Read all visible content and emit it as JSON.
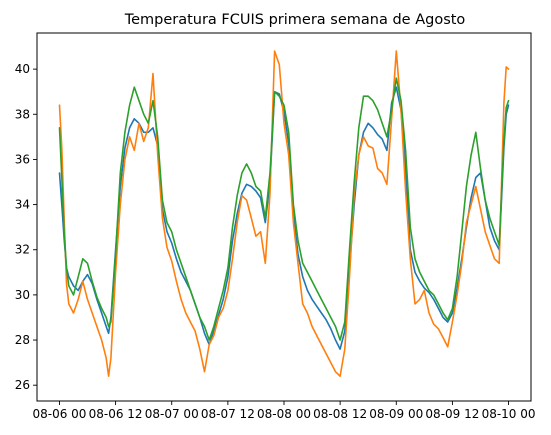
{
  "chart_data": {
    "type": "line",
    "title": "Temperatura FCUIS primera semana de Agosto",
    "xlabel": "",
    "ylabel": "",
    "x_ticks": [
      "08-06 00",
      "08-06 12",
      "08-07 00",
      "08-07 12",
      "08-08 00",
      "08-08 12",
      "08-09 00",
      "08-09 12",
      "08-10 00"
    ],
    "y_ticks": [
      26,
      28,
      30,
      32,
      34,
      36,
      38,
      40
    ],
    "xlim_hours": [
      -4.8,
      100.8
    ],
    "ylim": [
      25.3,
      41.6
    ],
    "grid": false,
    "legend": "none",
    "series": [
      {
        "color": "#1f77b4",
        "x_hours": [
          0,
          0.5,
          1,
          1.5,
          2,
          3,
          4,
          5,
          6,
          7,
          8,
          9,
          10,
          10.5,
          11,
          12,
          13,
          14,
          15,
          16,
          17,
          18,
          19,
          20,
          21,
          22,
          23,
          24,
          25,
          26,
          27,
          28,
          29,
          30,
          31,
          32,
          33,
          34,
          35,
          36,
          37,
          38,
          39,
          40,
          41,
          42,
          43,
          44,
          45,
          46,
          47,
          48,
          49,
          50,
          51,
          52,
          53,
          54,
          55,
          56,
          57,
          58,
          59,
          60,
          61,
          62,
          63,
          64,
          65,
          66,
          67,
          68,
          69,
          70,
          71,
          72,
          73,
          74,
          75,
          76,
          77,
          78,
          79,
          80,
          81,
          82,
          83,
          84,
          85,
          86,
          87,
          88,
          89,
          90,
          91,
          92,
          93,
          94,
          95,
          95.5,
          96
        ],
        "values": [
          35.4,
          34,
          32.5,
          31.2,
          30.8,
          30.4,
          30.2,
          30.6,
          30.9,
          30.5,
          29.8,
          29.2,
          28.6,
          28.3,
          29,
          32,
          34.8,
          36.5,
          37.4,
          37.8,
          37.6,
          37.2,
          37.2,
          37.4,
          36.6,
          33.8,
          32.8,
          32.3,
          31.6,
          31,
          30.6,
          30.2,
          29.6,
          29,
          28.3,
          27.8,
          28.4,
          29.1,
          29.8,
          30.8,
          32.4,
          33.6,
          34.5,
          34.9,
          34.8,
          34.6,
          34.3,
          33.2,
          35,
          39,
          38.9,
          38.1,
          36.7,
          33.6,
          31.8,
          30.8,
          30.2,
          29.8,
          29.5,
          29.2,
          28.9,
          28.5,
          28,
          27.6,
          28.4,
          31.2,
          34,
          36.2,
          37.2,
          37.6,
          37.4,
          37.1,
          36.9,
          36.4,
          38.5,
          39.2,
          38.2,
          35.6,
          32,
          31,
          30.6,
          30.3,
          30.1,
          29.8,
          29.4,
          29,
          28.8,
          29.2,
          30.3,
          31.6,
          33,
          34.3,
          35.2,
          35.4,
          34.2,
          33,
          32.4,
          32,
          36.5,
          38,
          38.4
        ]
      },
      {
        "color": "#ff7f0e",
        "x_hours": [
          0,
          0.5,
          1,
          1.5,
          2,
          3,
          4,
          5,
          6,
          7,
          8,
          9,
          10,
          10.5,
          11,
          12,
          13,
          14,
          15,
          16,
          17,
          18,
          19,
          20,
          21,
          22,
          23,
          24,
          25,
          26,
          27,
          28,
          29,
          30,
          31,
          32,
          33,
          34,
          35,
          36,
          37,
          38,
          39,
          40,
          41,
          42,
          43,
          44,
          45,
          46,
          47,
          48,
          49,
          50,
          51,
          52,
          53,
          54,
          55,
          56,
          57,
          58,
          59,
          60,
          61,
          62,
          63,
          64,
          65,
          66,
          67,
          68,
          69,
          70,
          71,
          72,
          73,
          74,
          75,
          76,
          77,
          78,
          79,
          80,
          81,
          82,
          83,
          84,
          85,
          86,
          87,
          88,
          89,
          90,
          91,
          92,
          93,
          94,
          95,
          95.5,
          96
        ],
        "values": [
          38.4,
          36.5,
          33.5,
          30.5,
          29.6,
          29.2,
          29.8,
          30.6,
          29.8,
          29.2,
          28.6,
          28,
          27.2,
          26.4,
          27.2,
          31,
          34,
          36,
          37,
          36.4,
          37.6,
          36.8,
          37.4,
          39.8,
          36.2,
          33.4,
          32.1,
          31.5,
          30.6,
          29.8,
          29.2,
          28.8,
          28.4,
          27.6,
          26.6,
          27.8,
          28.2,
          29,
          29.4,
          30.2,
          31.6,
          33.2,
          34.4,
          34.2,
          33.4,
          32.6,
          32.8,
          31.4,
          34.5,
          40.8,
          40.2,
          37.6,
          36.2,
          33.2,
          31.4,
          29.6,
          29.2,
          28.6,
          28.2,
          27.8,
          27.4,
          27,
          26.6,
          26.4,
          27.6,
          30.8,
          34.5,
          36.2,
          37,
          36.6,
          36.5,
          35.6,
          35.4,
          34.9,
          37.8,
          40.8,
          38.2,
          34.6,
          31.6,
          29.6,
          29.8,
          30.2,
          29.2,
          28.7,
          28.5,
          28.1,
          27.7,
          28.8,
          30,
          31.4,
          33.2,
          34,
          34.8,
          33.8,
          32.8,
          32.2,
          31.6,
          31.4,
          38.5,
          40.1,
          40
        ]
      },
      {
        "color": "#2ca02c",
        "x_hours": [
          0,
          0.5,
          1,
          1.5,
          2,
          3,
          4,
          5,
          6,
          7,
          8,
          9,
          10,
          10.5,
          11,
          12,
          13,
          14,
          15,
          16,
          17,
          18,
          19,
          20,
          21,
          22,
          23,
          24,
          25,
          26,
          27,
          28,
          29,
          30,
          31,
          32,
          33,
          34,
          35,
          36,
          37,
          38,
          39,
          40,
          41,
          42,
          43,
          44,
          45,
          46,
          47,
          48,
          49,
          50,
          51,
          52,
          53,
          54,
          55,
          56,
          57,
          58,
          59,
          60,
          61,
          62,
          63,
          64,
          65,
          66,
          67,
          68,
          69,
          70,
          71,
          72,
          73,
          74,
          75,
          76,
          77,
          78,
          79,
          80,
          81,
          82,
          83,
          84,
          85,
          86,
          87,
          88,
          89,
          90,
          91,
          92,
          93,
          94,
          95,
          95.5,
          96
        ],
        "values": [
          37.4,
          35.2,
          32.8,
          31.2,
          30.4,
          30,
          30.8,
          31.6,
          31.4,
          30.6,
          29.9,
          29.4,
          29,
          28.6,
          28.8,
          31.8,
          35.4,
          37.2,
          38.4,
          39.2,
          38.6,
          38,
          37.6,
          38.6,
          37,
          34.2,
          33.2,
          32.8,
          32,
          31.4,
          30.8,
          30.2,
          29.6,
          29,
          28.6,
          28,
          28.6,
          29.4,
          30.2,
          31.2,
          33,
          34.4,
          35.4,
          35.8,
          35.4,
          34.8,
          34.6,
          33.4,
          35.4,
          39,
          38.8,
          38.4,
          37.2,
          34,
          32.4,
          31.4,
          31,
          30.6,
          30.2,
          29.8,
          29.4,
          29,
          28.6,
          28,
          28.8,
          32,
          35,
          37.4,
          38.8,
          38.8,
          38.6,
          38.2,
          37.6,
          37,
          38.2,
          39.6,
          38.6,
          36.4,
          33,
          31.6,
          31,
          30.6,
          30.2,
          30,
          29.6,
          29.2,
          28.9,
          29.4,
          30.8,
          32.8,
          34.8,
          36.2,
          37.2,
          35.6,
          34.2,
          33.4,
          32.8,
          32.2,
          36.8,
          38.3,
          38.6
        ]
      }
    ]
  }
}
